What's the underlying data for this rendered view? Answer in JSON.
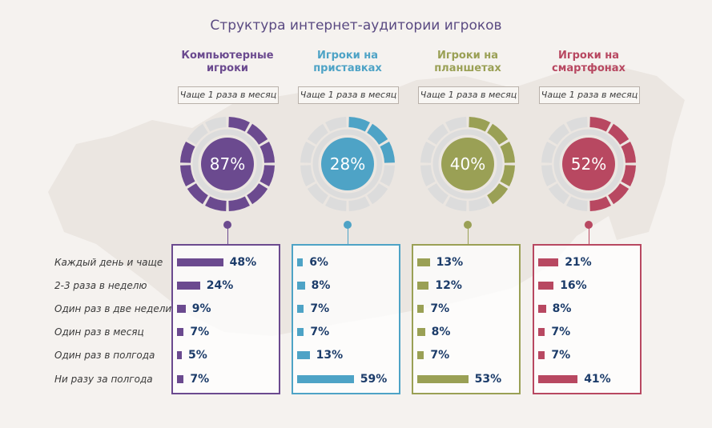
{
  "title": "Структура интернет-аудитории игроков",
  "row_labels": [
    "Каждый день и чаще",
    "2-3 раза в неделю",
    "Один раз в две недели",
    "Один раз в месяц",
    "Один раз в полгода",
    "Ни разу за полгода"
  ],
  "groups": [
    {
      "name": "Компьютерные игроки",
      "freq_label": "Чаще 1 раза в месяц",
      "percent_label": "87%",
      "color": "#6b4a8f"
    },
    {
      "name": "Игроки на приставках",
      "freq_label": "Чаще 1 раза в месяц",
      "percent_label": "28%",
      "color": "#4ea3c6"
    },
    {
      "name": "Игроки на планшетах",
      "freq_label": "Чаще 1 раза в месяц",
      "percent_label": "40%",
      "color": "#9aa055"
    },
    {
      "name": "Игроки на смартфонах",
      "freq_label": "Чаще 1 раза в месяц",
      "percent_label": "52%",
      "color": "#b84861"
    }
  ],
  "chart_data": [
    {
      "type": "pie",
      "title": "Чаще 1 раза в месяц",
      "categories": [
        "Компьютерные игроки",
        "Игроки на приставках",
        "Игроки на планшетах",
        "Игроки на смартфонах"
      ],
      "values": [
        87,
        28,
        40,
        52
      ],
      "unit": "%"
    },
    {
      "type": "bar",
      "orientation": "horizontal",
      "categories": [
        "Каждый день и чаще",
        "2-3 раза в неделю",
        "Один раз в две недели",
        "Один раз в месяц",
        "Один раз в полгода",
        "Ни разу за полгода"
      ],
      "series": [
        {
          "name": "Компьютерные игроки",
          "values": [
            48,
            24,
            9,
            7,
            5,
            7
          ]
        },
        {
          "name": "Игроки на приставках",
          "values": [
            6,
            8,
            7,
            7,
            13,
            59
          ]
        },
        {
          "name": "Игроки на планшетах",
          "values": [
            13,
            12,
            7,
            8,
            7,
            53
          ]
        },
        {
          "name": "Игроки на смартфонах",
          "values": [
            21,
            16,
            8,
            7,
            7,
            41
          ]
        }
      ],
      "value_labels": [
        [
          "48%",
          "24%",
          "9%",
          "7%",
          "5%",
          "7%"
        ],
        [
          "6%",
          "8%",
          "7%",
          "7%",
          "13%",
          "59%"
        ],
        [
          "13%",
          "12%",
          "7%",
          "8%",
          "7%",
          "53%"
        ],
        [
          "21%",
          "16%",
          "8%",
          "7%",
          "7%",
          "41%"
        ]
      ],
      "unit": "%"
    }
  ]
}
